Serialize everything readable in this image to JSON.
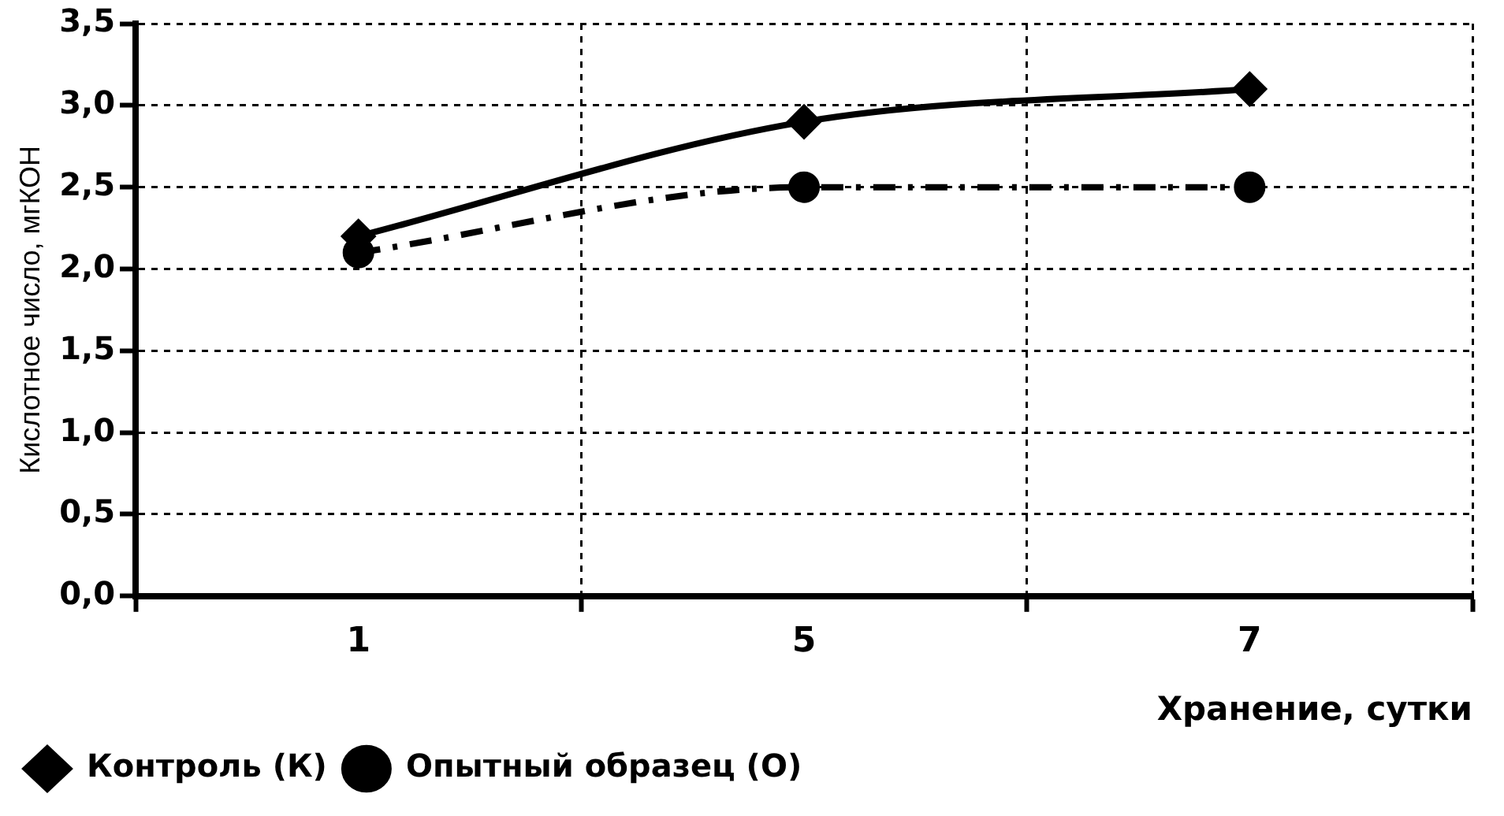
{
  "chart_data": {
    "type": "line",
    "xlabel": "Хранение, сутки",
    "ylabel": "Кислотное число, мгКОН",
    "categories": [
      "1",
      "5",
      "7"
    ],
    "series": [
      {
        "name": "Контроль (К)",
        "color": "#000000",
        "values": [
          2.2,
          2.9,
          3.1
        ],
        "marker": "diamond",
        "line_style": "solid"
      },
      {
        "name": "Опытный образец (О)",
        "color": "#000000",
        "values": [
          2.1,
          2.5,
          2.5
        ],
        "marker": "circle",
        "line_style": "dashdot"
      }
    ],
    "ylim": [
      0,
      3.5
    ],
    "yticks": [
      {
        "value": 0,
        "label": "0,0"
      },
      {
        "value": 0.5,
        "label": "0,5"
      },
      {
        "value": 1,
        "label": "1,0"
      },
      {
        "value": 1.5,
        "label": "1,5"
      },
      {
        "value": 2,
        "label": "2,0"
      },
      {
        "value": 2.5,
        "label": "2,5"
      },
      {
        "value": 3,
        "label": "3,0"
      },
      {
        "value": 3.5,
        "label": "3,5"
      }
    ],
    "grid": true,
    "legend": "bottom left"
  }
}
